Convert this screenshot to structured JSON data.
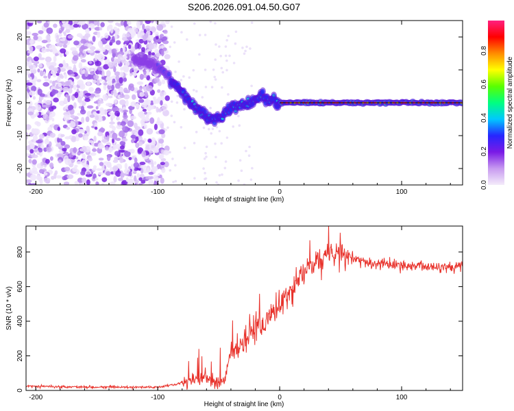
{
  "title": "S206.2026.091.04.50.G07",
  "chart_data": [
    {
      "type": "heatmap",
      "title": "S206.2026.091.04.50.G07",
      "xlabel": "Height of straight line (km)",
      "ylabel": "Frequency (Hz)",
      "xlim": [
        -208,
        150
      ],
      "ylim": [
        -25,
        25
      ],
      "xticks": [
        -200,
        -100,
        0,
        100
      ],
      "yticks": [
        -20,
        -10,
        0,
        10,
        20
      ],
      "colorbar": {
        "label": "Normalized spectral amplitude",
        "range": [
          0,
          0.98
        ],
        "ticks": [
          "0.0",
          "0.2",
          "0.4",
          "0.6",
          "0.8"
        ],
        "colors": [
          "#f4ecfa",
          "#c79af0",
          "#7a1ae6",
          "#2626ff",
          "#00c8ff",
          "#00ff80",
          "#5aff00",
          "#ffff00",
          "#ff8c00",
          "#ff0000",
          "#ff2080"
        ]
      },
      "ridge": {
        "description": "dominant frequency trace",
        "points": [
          [
            -120,
            13
          ],
          [
            -105,
            12
          ],
          [
            -95,
            9
          ],
          [
            -85,
            5
          ],
          [
            -75,
            1
          ],
          [
            -65,
            -3
          ],
          [
            -55,
            -5
          ],
          [
            -48,
            -4
          ],
          [
            -42,
            -2
          ],
          [
            -35,
            -1
          ],
          [
            -25,
            0
          ],
          [
            -15,
            2
          ],
          [
            -10,
            1
          ],
          [
            0,
            0
          ],
          [
            150,
            0
          ]
        ]
      },
      "reference_line": 0
    },
    {
      "type": "line",
      "xlabel": "Height of straight line (km)",
      "ylabel": "SNR (10 * v/v)",
      "xlim": [
        -208,
        150
      ],
      "ylim": [
        0,
        950
      ],
      "xticks": [
        -200,
        -100,
        0,
        100
      ],
      "yticks": [
        0,
        200,
        400,
        600,
        800
      ],
      "color": "#e8312a",
      "series": [
        {
          "name": "SNR",
          "x": [
            -208,
            -180,
            -150,
            -120,
            -100,
            -90,
            -80,
            -70,
            -60,
            -55,
            -50,
            -45,
            -40,
            -35,
            -30,
            -25,
            -20,
            -15,
            -10,
            -5,
            0,
            5,
            10,
            15,
            20,
            25,
            30,
            35,
            40,
            45,
            50,
            55,
            60,
            70,
            80,
            90,
            100,
            110,
            120,
            130,
            140,
            150
          ],
          "y": [
            25,
            22,
            20,
            18,
            20,
            30,
            45,
            60,
            70,
            55,
            40,
            60,
            250,
            200,
            280,
            320,
            380,
            350,
            420,
            440,
            500,
            520,
            560,
            640,
            680,
            720,
            740,
            760,
            780,
            790,
            800,
            770,
            760,
            740,
            730,
            730,
            720,
            720,
            715,
            720,
            715,
            720
          ]
        }
      ]
    }
  ]
}
